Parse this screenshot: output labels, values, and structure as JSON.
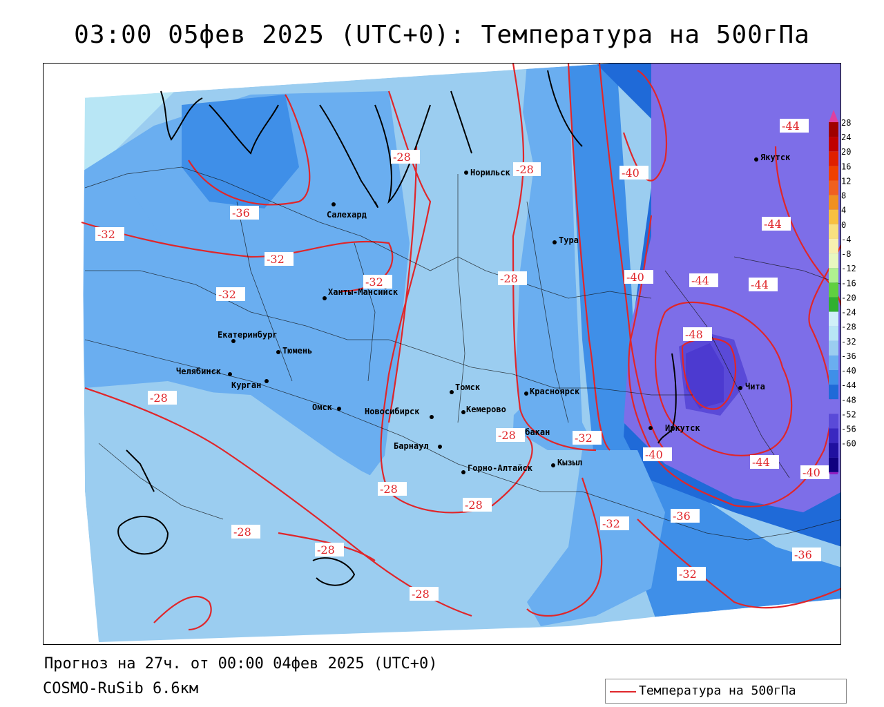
{
  "title": "03:00 05фев 2025 (UTC+0): Температура на 500гПа",
  "footer": {
    "forecast": "Прогноз на 27ч. от 00:00 04фев 2025 (UTC+0)",
    "model": "COSMO-RuSib 6.6км"
  },
  "legend": {
    "label": "Температура на 500гПа",
    "line_color": "#e0262a"
  },
  "colors": {
    "contour": "#e0262a",
    "band_-24": "#b8e6f5",
    "band_-28": "#9bcdf0",
    "band_-32": "#6aaef0",
    "band_-36": "#3f8fe8",
    "band_-40": "#1f6ad8",
    "band_-44": "#7d6ee8",
    "band_-48": "#4c3ad0"
  },
  "scale": {
    "ticks": [
      "28",
      "24",
      "20",
      "16",
      "12",
      "8",
      "4",
      "0",
      "-4",
      "-8",
      "-12",
      "-16",
      "-20",
      "-24",
      "-28",
      "-32",
      "-36",
      "-40",
      "-44",
      "-48",
      "-52",
      "-56",
      "-60"
    ],
    "colors": [
      "#a00000",
      "#c00000",
      "#e02000",
      "#f04000",
      "#f06020",
      "#f09020",
      "#f8c040",
      "#f8e080",
      "#f8f0b0",
      "#e8f8c0",
      "#b0f090",
      "#60d040",
      "#30b030",
      "#d0f0f8",
      "#b8e6f5",
      "#9bcdf0",
      "#6aaef0",
      "#3f8fe8",
      "#1f6ad8",
      "#7d6ee8",
      "#5a4ad8",
      "#3a28c0",
      "#2010a0",
      "#100080"
    ],
    "top_color": "#e040a0",
    "bottom_color": "#9020c0"
  },
  "cities": [
    {
      "name": "Норильск"
    },
    {
      "name": "Якутск"
    },
    {
      "name": "Салехард"
    },
    {
      "name": "Тура"
    },
    {
      "name": "Ханты-Мансийск"
    },
    {
      "name": "Екатеринбург"
    },
    {
      "name": "Тюмень"
    },
    {
      "name": "Челябинск"
    },
    {
      "name": "Курган"
    },
    {
      "name": "Омск"
    },
    {
      "name": "Новосибирск"
    },
    {
      "name": "Томск"
    },
    {
      "name": "Кемерово"
    },
    {
      "name": "Красноярск"
    },
    {
      "name": "Барнаул"
    },
    {
      "name": "Абакан"
    },
    {
      "name": "Иркутск"
    },
    {
      "name": "Чита"
    },
    {
      "name": "Горно-Алтайск"
    },
    {
      "name": "Кызыл"
    }
  ],
  "isolines": [
    "-28",
    "-28",
    "-44",
    "-44",
    "-36",
    "-32",
    "-32",
    "-32",
    "-28",
    "-44",
    "-32",
    "-40",
    "-40",
    "-44",
    "-48",
    "-28",
    "-28",
    "-32",
    "-40",
    "-44",
    "-40",
    "-28",
    "-28",
    "-32",
    "-36",
    "-28",
    "-36",
    "-28",
    "-32",
    "-28"
  ]
}
